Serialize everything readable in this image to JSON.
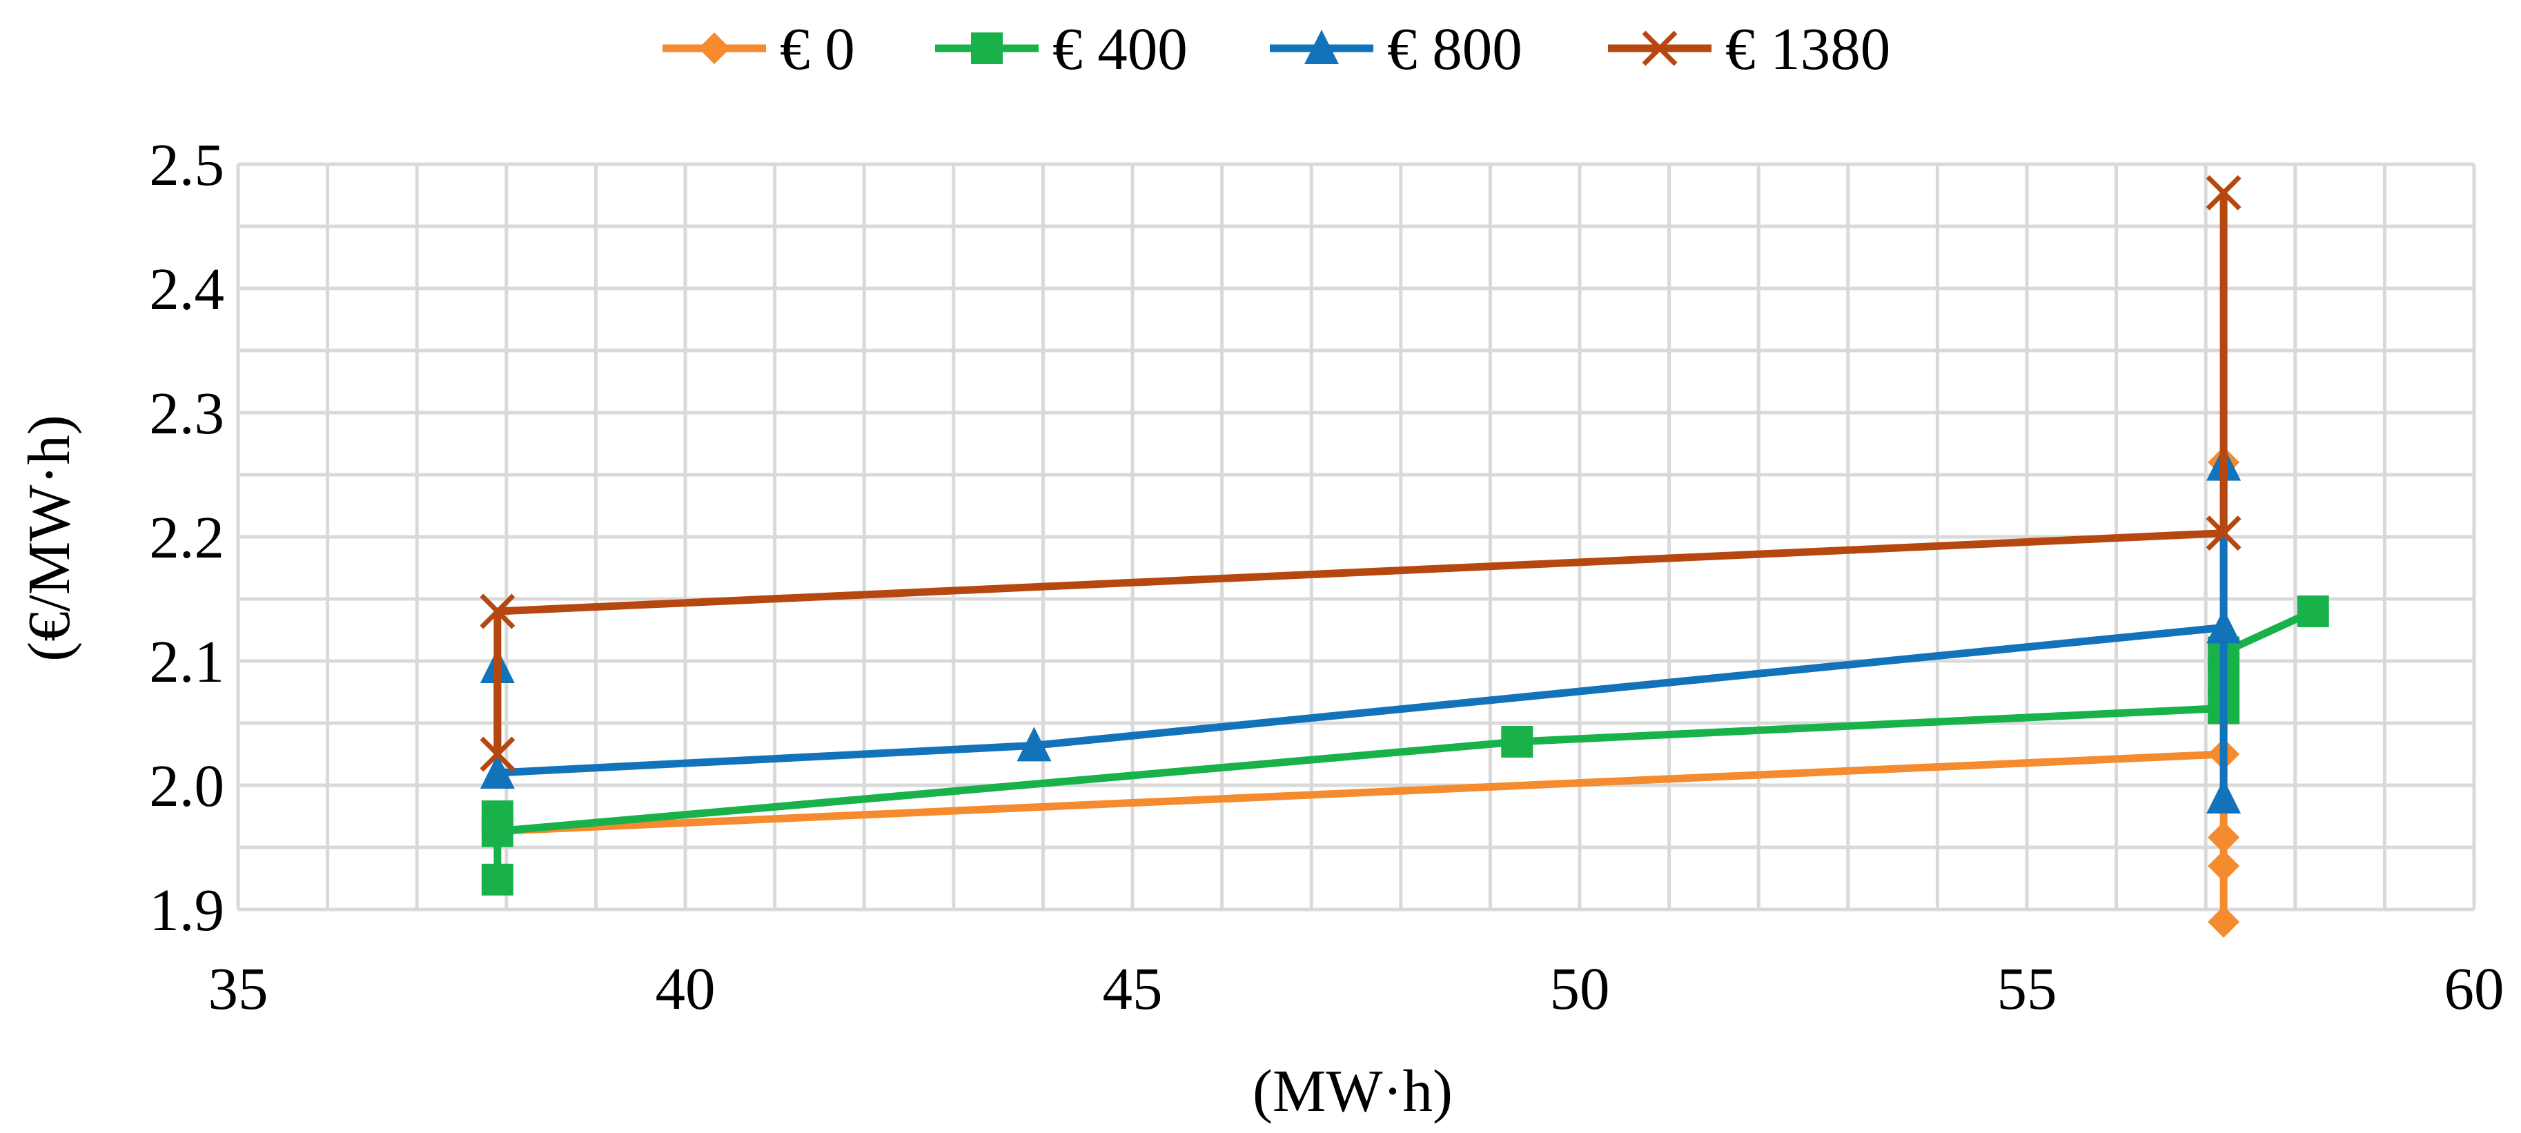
{
  "chart_data": {
    "type": "line",
    "title": "",
    "xlabel": "(MW·h)",
    "ylabel": "(€/MW·h)",
    "xlim": [
      35,
      60
    ],
    "ylim": [
      1.9,
      2.5
    ],
    "x_ticks": [
      "35",
      "40",
      "45",
      "50",
      "55",
      "60"
    ],
    "y_ticks": [
      "1.9",
      "2.0",
      "2.1",
      "2.2",
      "2.3",
      "2.4",
      "2.5"
    ],
    "grid": true,
    "legend_position": "top",
    "series": [
      {
        "name": "€ 0",
        "color": "#F58A2E",
        "marker": "diamond",
        "points": [
          [
            37.9,
            1.963
          ],
          [
            57.2,
            2.025
          ],
          [
            57.2,
            2.26
          ],
          [
            57.2,
            1.958
          ],
          [
            57.2,
            1.935
          ],
          [
            57.2,
            1.89
          ]
        ]
      },
      {
        "name": "€ 400",
        "color": "#19B14A",
        "marker": "square",
        "points": [
          [
            37.9,
            1.924
          ],
          [
            37.9,
            1.975
          ],
          [
            37.9,
            1.963
          ],
          [
            49.3,
            2.035
          ],
          [
            57.2,
            2.062
          ],
          [
            57.2,
            2.085
          ],
          [
            57.2,
            2.107
          ],
          [
            58.2,
            2.14
          ]
        ]
      },
      {
        "name": "€ 800",
        "color": "#1273BA",
        "marker": "triangle",
        "points": [
          [
            37.9,
            2.095
          ],
          [
            37.9,
            2.01
          ],
          [
            43.9,
            2.032
          ],
          [
            57.2,
            2.127
          ],
          [
            57.2,
            2.258
          ],
          [
            57.2,
            1.99
          ]
        ]
      },
      {
        "name": "€ 1380",
        "color": "#B5470F",
        "marker": "x",
        "points": [
          [
            37.9,
            2.025
          ],
          [
            37.9,
            2.14
          ],
          [
            57.2,
            2.203
          ],
          [
            57.2,
            2.477
          ]
        ]
      }
    ]
  }
}
